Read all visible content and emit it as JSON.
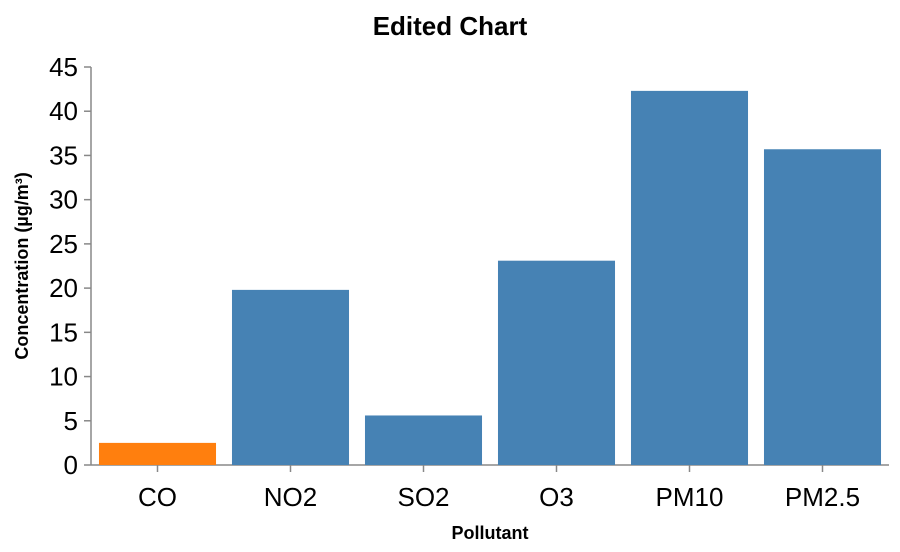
{
  "chart_data": {
    "type": "bar",
    "title": "Edited Chart",
    "xlabel": "Pollutant",
    "ylabel": "Concentration (µg/m³)",
    "categories": [
      "CO",
      "NO2",
      "SO2",
      "O3",
      "PM10",
      "PM2.5"
    ],
    "values": [
      2.5,
      19.8,
      5.6,
      23.1,
      42.3,
      35.7
    ],
    "colors": [
      "#ff7f0e",
      "#4682b4",
      "#4682b4",
      "#4682b4",
      "#4682b4",
      "#4682b4"
    ],
    "ylim": [
      0,
      45
    ],
    "yticks": [
      0,
      5,
      10,
      15,
      20,
      25,
      30,
      35,
      40,
      45
    ],
    "grid": false,
    "axis_color": "#888888"
  }
}
